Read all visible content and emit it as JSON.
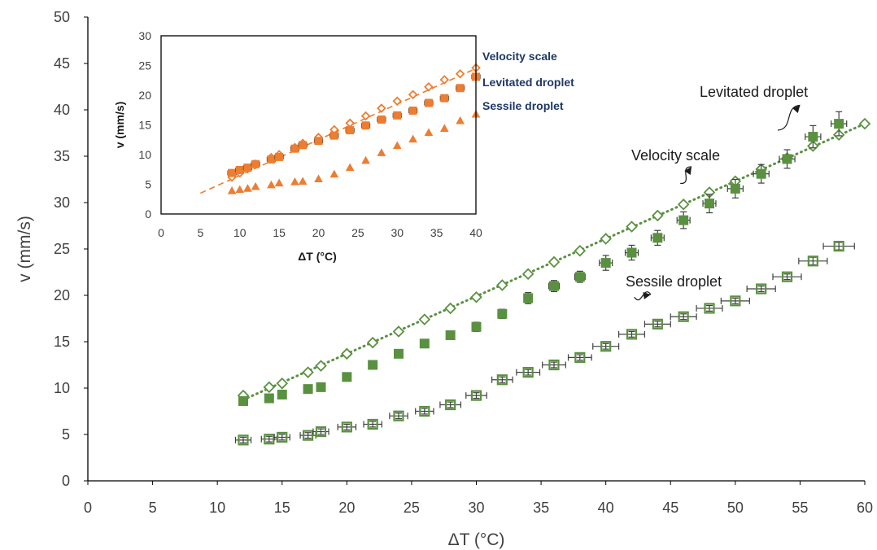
{
  "chart_data": [
    {
      "id": "main",
      "type": "scatter",
      "xlabel": "ΔT (°C)",
      "ylabel": "v (mm/s)",
      "xlim": [
        0,
        60
      ],
      "ylim": [
        0,
        50
      ],
      "xticks": [
        "0",
        "5",
        "10",
        "15",
        "20",
        "25",
        "30",
        "35",
        "40",
        "45",
        "50",
        "55",
        "60"
      ],
      "yticks": [
        "0",
        "5",
        "10",
        "15",
        "20",
        "25",
        "30",
        "35",
        "40",
        "45",
        "50"
      ],
      "grid": false,
      "colors": {
        "series": "#5a9140",
        "trend": "#5a9140",
        "axis": "#000000"
      },
      "series": [
        {
          "marker": "diamond-open",
          "trendline": "dotted",
          "points": [
            [
              12,
              9.2
            ],
            [
              14,
              10.1
            ],
            [
              15,
              10.5
            ],
            [
              17,
              11.7
            ],
            [
              18,
              12.4
            ],
            [
              20,
              13.7
            ],
            [
              22,
              14.9
            ],
            [
              24,
              16.1
            ],
            [
              26,
              17.4
            ],
            [
              28,
              18.6
            ],
            [
              30,
              19.8
            ],
            [
              32,
              21.1
            ],
            [
              34,
              22.3
            ],
            [
              36,
              23.6
            ],
            [
              38,
              24.8
            ],
            [
              40,
              26.1
            ],
            [
              42,
              27.4
            ],
            [
              44,
              28.6
            ],
            [
              46,
              29.8
            ],
            [
              48,
              31.1
            ],
            [
              50,
              32.3
            ],
            [
              52,
              33.6
            ],
            [
              54,
              34.8
            ],
            [
              56,
              36.1
            ],
            [
              58,
              37.3
            ],
            [
              60,
              38.5
            ]
          ]
        },
        {
          "marker": "square-filled",
          "points": [
            [
              12,
              8.6,
              0.2,
              0.3
            ],
            [
              14,
              8.9,
              0.2,
              0.3
            ],
            [
              15,
              9.3,
              0.2,
              0.3
            ],
            [
              17,
              9.9,
              0.2,
              0.3
            ],
            [
              18,
              10.1,
              0.2,
              0.3
            ],
            [
              20,
              11.2,
              0.2,
              0.3
            ],
            [
              22,
              12.5,
              0.2,
              0.3
            ],
            [
              24,
              13.7,
              0.2,
              0.3
            ],
            [
              26,
              14.8,
              0.2,
              0.3
            ],
            [
              28,
              15.7,
              0.2,
              0.4
            ],
            [
              30,
              16.6,
              0.3,
              0.5
            ],
            [
              32,
              18.0,
              0.3,
              0.5
            ],
            [
              34,
              19.7,
              0.3,
              0.6
            ],
            [
              36,
              21.0,
              0.4,
              0.6
            ],
            [
              38,
              22.0,
              0.4,
              0.6
            ],
            [
              40,
              23.5,
              0.5,
              0.8
            ],
            [
              42,
              24.6,
              0.5,
              0.8
            ],
            [
              44,
              26.2,
              0.5,
              0.8
            ],
            [
              46,
              28.1,
              0.5,
              0.9
            ],
            [
              48,
              29.9,
              0.5,
              1.0
            ],
            [
              50,
              31.5,
              0.6,
              1.0
            ],
            [
              52,
              33.1,
              0.6,
              1.0
            ],
            [
              54,
              34.7,
              0.6,
              1.0
            ],
            [
              56,
              37.1,
              0.6,
              1.2
            ],
            [
              58,
              38.5,
              0.6,
              1.3
            ]
          ]
        },
        {
          "marker": "square-open",
          "points": [
            [
              12,
              4.4,
              0.6,
              0.3
            ],
            [
              14,
              4.5,
              0.6,
              0.3
            ],
            [
              15,
              4.7,
              0.6,
              0.3
            ],
            [
              17,
              4.9,
              0.6,
              0.3
            ],
            [
              18,
              5.3,
              0.6,
              0.3
            ],
            [
              20,
              5.8,
              0.7,
              0.3
            ],
            [
              22,
              6.1,
              0.7,
              0.3
            ],
            [
              24,
              7.0,
              0.7,
              0.3
            ],
            [
              26,
              7.5,
              0.7,
              0.3
            ],
            [
              28,
              8.2,
              0.8,
              0.3
            ],
            [
              30,
              9.2,
              0.8,
              0.3
            ],
            [
              32,
              10.9,
              0.8,
              0.3
            ],
            [
              34,
              11.7,
              0.9,
              0.3
            ],
            [
              36,
              12.5,
              0.9,
              0.3
            ],
            [
              38,
              13.3,
              0.9,
              0.3
            ],
            [
              40,
              14.5,
              1.0,
              0.3
            ],
            [
              42,
              15.8,
              1.0,
              0.3
            ],
            [
              44,
              16.9,
              1.0,
              0.3
            ],
            [
              46,
              17.7,
              1.0,
              0.3
            ],
            [
              48,
              18.6,
              1.0,
              0.3
            ],
            [
              50,
              19.4,
              1.1,
              0.3
            ],
            [
              52,
              20.7,
              1.1,
              0.3
            ],
            [
              54,
              22.0,
              1.1,
              0.3
            ],
            [
              56,
              23.7,
              1.1,
              0.4
            ],
            [
              58,
              25.3,
              1.2,
              0.4
            ]
          ]
        }
      ],
      "annotations": [
        {
          "text": "Levitated droplet",
          "tip": [
            55,
            40.5
          ]
        },
        {
          "text": "Velocity scale",
          "tip": [
            46,
            32.5
          ]
        },
        {
          "text": "Sessile droplet",
          "tip": [
            42.2,
            19.8
          ]
        }
      ]
    },
    {
      "id": "inset",
      "type": "scatter",
      "xlabel": "ΔT (°C)",
      "ylabel": "v (mm/s)",
      "xlim": [
        0,
        40
      ],
      "ylim": [
        0,
        30
      ],
      "xticks": [
        "0",
        "5",
        "10",
        "15",
        "20",
        "25",
        "30",
        "35",
        "40"
      ],
      "yticks": [
        "0",
        "5",
        "10",
        "15",
        "20",
        "25",
        "30"
      ],
      "grid": false,
      "colors": {
        "series": "#ed7d31",
        "label": "#1f3864",
        "axis": "#000000"
      },
      "series": [
        {
          "marker": "diamond-open",
          "trendline": "dashed",
          "trend_points": [
            [
              5,
              3.5
            ],
            [
              40,
              24.5
            ]
          ],
          "points": [
            [
              9,
              6.2
            ],
            [
              10,
              6.9
            ],
            [
              11,
              7.6
            ],
            [
              12,
              8.4
            ],
            [
              14,
              9.5
            ],
            [
              15,
              10.0
            ],
            [
              17,
              11.2
            ],
            [
              18,
              11.9
            ],
            [
              20,
              12.9
            ],
            [
              22,
              14.2
            ],
            [
              24,
              15.3
            ],
            [
              26,
              16.5
            ],
            [
              28,
              17.8
            ],
            [
              30,
              19.0
            ],
            [
              32,
              20.1
            ],
            [
              34,
              21.4
            ],
            [
              36,
              22.6
            ],
            [
              38,
              23.6
            ],
            [
              40,
              24.6
            ]
          ]
        },
        {
          "marker": "square-filled",
          "points": [
            [
              9,
              6.9
            ],
            [
              10,
              7.4
            ],
            [
              11,
              7.8
            ],
            [
              12,
              8.4
            ],
            [
              14,
              9.2
            ],
            [
              15,
              9.6
            ],
            [
              17,
              11.0
            ],
            [
              18,
              11.6
            ],
            [
              20,
              12.3
            ],
            [
              22,
              13.2
            ],
            [
              24,
              14.1
            ],
            [
              26,
              14.9
            ],
            [
              28,
              15.9
            ],
            [
              30,
              16.6
            ],
            [
              32,
              17.4
            ],
            [
              34,
              18.7
            ],
            [
              36,
              19.5
            ],
            [
              38,
              21.2
            ],
            [
              40,
              23.1
            ]
          ]
        },
        {
          "marker": "triangle-filled",
          "points": [
            [
              9,
              3.9
            ],
            [
              10,
              4.1
            ],
            [
              11,
              4.3
            ],
            [
              12,
              4.6
            ],
            [
              14,
              4.9
            ],
            [
              15,
              5.2
            ],
            [
              17,
              5.4
            ],
            [
              18,
              5.5
            ],
            [
              20,
              5.9
            ],
            [
              22,
              6.7
            ],
            [
              24,
              7.8
            ],
            [
              26,
              9.0
            ],
            [
              28,
              10.3
            ],
            [
              30,
              11.5
            ],
            [
              32,
              12.6
            ],
            [
              34,
              13.7
            ],
            [
              36,
              14.4
            ],
            [
              38,
              15.7
            ],
            [
              40,
              16.8
            ]
          ]
        }
      ],
      "legend_labels": [
        "Velocity scale",
        "Levitated droplet",
        "Sessile droplet"
      ]
    }
  ]
}
